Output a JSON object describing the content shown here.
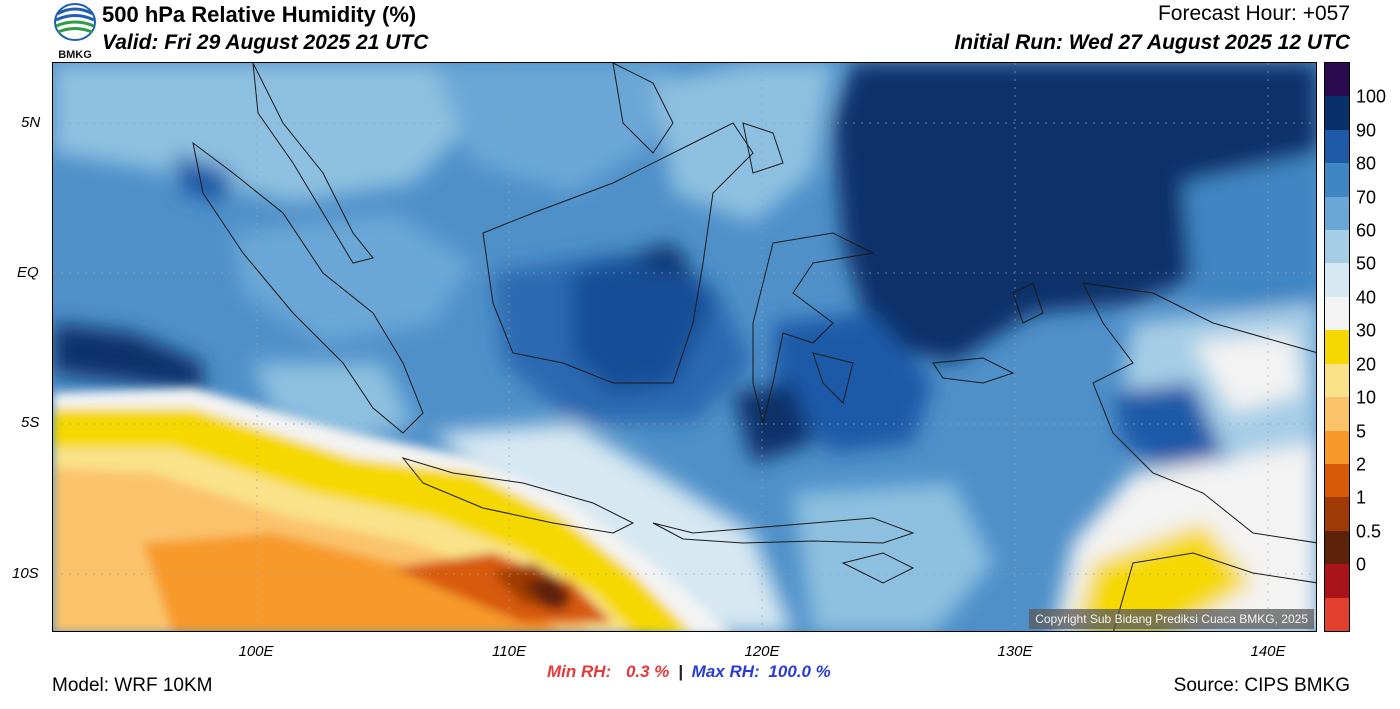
{
  "header": {
    "title": "500 hPa Relative Humidity (%)",
    "valid": "Valid: Fri 29 August 2025 21 UTC",
    "forecast_hour": "Forecast Hour: +057",
    "initial_run": "Initial Run: Wed 27 August 2025 12 UTC",
    "logo_text": "BMKG"
  },
  "map": {
    "copyright": "Copyright Sub Bidang Prediksi Cuaca BMKG, 2025",
    "lat_labels": [
      "5N",
      "EQ",
      "5S",
      "10S"
    ],
    "lon_labels": [
      "100E",
      "110E",
      "120E",
      "130E",
      "140E"
    ]
  },
  "colorbar": {
    "labels": [
      "100",
      "90",
      "80",
      "70",
      "60",
      "50",
      "40",
      "30",
      "20",
      "10",
      "5",
      "2",
      "1",
      "0.5",
      "0"
    ],
    "colors": [
      "#2b0a4f",
      "#08306b",
      "#1e5aa8",
      "#3f86c4",
      "#6aa7d6",
      "#a6cde6",
      "#d6e8f2",
      "#f3f3f3",
      "#f5d800",
      "#f9e28a",
      "#fac36a",
      "#f79a2a",
      "#d75a08",
      "#9f3a06",
      "#5e2208",
      "#a8141a",
      "#e0402d"
    ]
  },
  "stats": {
    "min_label": "Min RH:",
    "min_value": "0.3 %",
    "separator": "|",
    "max_label": "Max RH:",
    "max_value": "100.0 %"
  },
  "footer": {
    "model": "Model: WRF 10KM",
    "source": "Source: CIPS BMKG"
  }
}
